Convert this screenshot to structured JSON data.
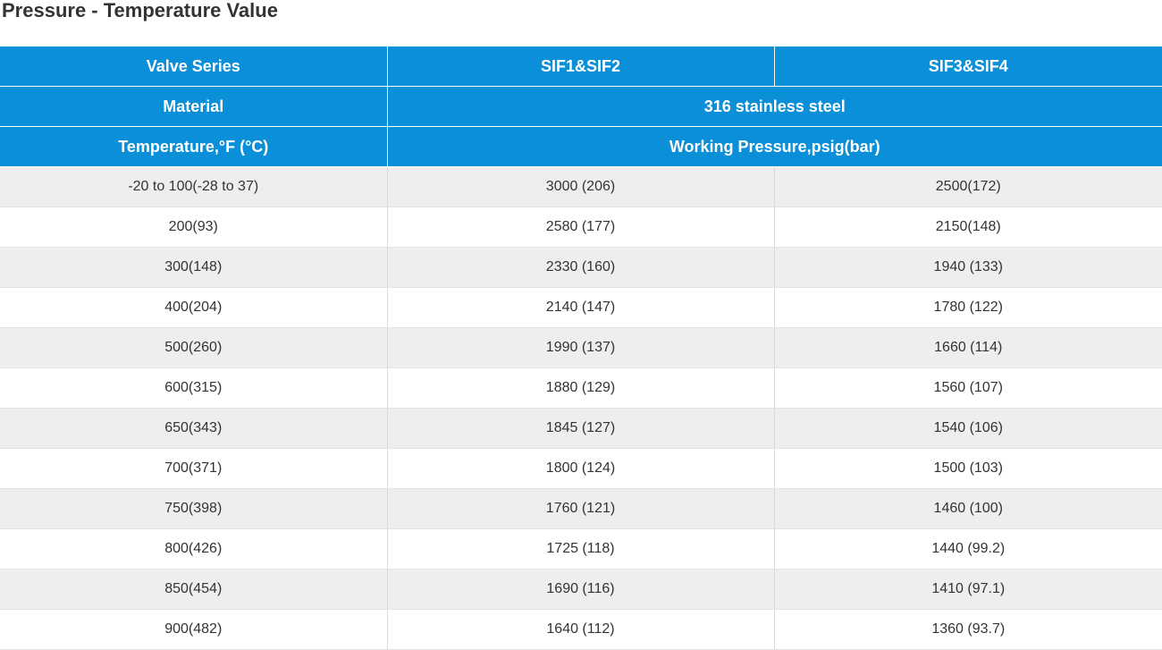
{
  "title": "Pressure - Temperature Value",
  "colors": {
    "header_bg": "#0a8fd8",
    "header_text": "#ffffff",
    "row_alt_bg": "#eeeeee",
    "row_bg": "#ffffff"
  },
  "header": {
    "series_label": "Valve Series",
    "series_1": "SIF1&SIF2",
    "series_2": "SIF3&SIF4",
    "material_label": "Material",
    "material_value": "316 stainless steel",
    "temperature_label": "Temperature,°F (°C)",
    "pressure_label": "Working Pressure,psig(bar)"
  },
  "rows": [
    {
      "temp": "-20 to 100(-28 to 37)",
      "sif12": "3000 (206)",
      "sif34": "2500(172)"
    },
    {
      "temp": "200(93)",
      "sif12": "2580 (177)",
      "sif34": "2150(148)"
    },
    {
      "temp": "300(148)",
      "sif12": "2330 (160)",
      "sif34": "1940 (133)"
    },
    {
      "temp": "400(204)",
      "sif12": "2140 (147)",
      "sif34": "1780 (122)"
    },
    {
      "temp": "500(260)",
      "sif12": "1990 (137)",
      "sif34": "1660 (114)"
    },
    {
      "temp": "600(315)",
      "sif12": "1880 (129)",
      "sif34": "1560 (107)"
    },
    {
      "temp": "650(343)",
      "sif12": "1845 (127)",
      "sif34": "1540 (106)"
    },
    {
      "temp": "700(371)",
      "sif12": "1800 (124)",
      "sif34": "1500 (103)"
    },
    {
      "temp": "750(398)",
      "sif12": "1760 (121)",
      "sif34": "1460 (100)"
    },
    {
      "temp": "800(426)",
      "sif12": "1725 (118)",
      "sif34": "1440 (99.2)"
    },
    {
      "temp": "850(454)",
      "sif12": "1690 (116)",
      "sif34": "1410 (97.1)"
    },
    {
      "temp": "900(482)",
      "sif12": "1640 (112)",
      "sif34": "1360 (93.7)"
    }
  ]
}
